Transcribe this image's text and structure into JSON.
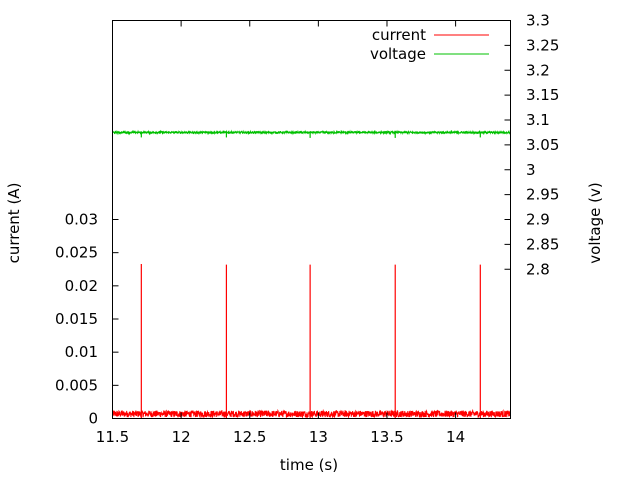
{
  "chart_data": {
    "type": "line",
    "title": "",
    "xlabel": "time (s)",
    "ylabel": "current (A)",
    "y2label": "voltage (v)",
    "xlim": [
      11.5,
      14.4
    ],
    "ylim": [
      0,
      0.06
    ],
    "y2lim": [
      2.5,
      3.3
    ],
    "xticks": [
      11.5,
      12,
      12.5,
      13,
      13.5,
      14
    ],
    "xtick_labels": [
      "11.5",
      "12",
      "12.5",
      "13",
      "13.5",
      "14"
    ],
    "yticks": [
      0,
      0.005,
      0.01,
      0.015,
      0.02,
      0.025,
      0.03
    ],
    "ytick_labels": [
      "0",
      "0.005",
      "0.01",
      "0.015",
      "0.02",
      "0.025",
      "0.03"
    ],
    "y2ticks": [
      2.8,
      2.85,
      2.9,
      2.95,
      3,
      3.05,
      3.1,
      3.15,
      3.2,
      3.25,
      3.3
    ],
    "y2tick_labels": [
      "2.8",
      "2.85",
      "2.9",
      "2.95",
      "3",
      "3.05",
      "3.1",
      "3.15",
      "3.2",
      "3.25",
      "3.3"
    ],
    "grid": false,
    "legend_position": "top-right",
    "series": [
      {
        "name": "current",
        "axis": "left",
        "color": "#ff0000",
        "baseline": 0.0007,
        "noise": 0.0005,
        "spikes": [
          {
            "x": 11.71,
            "y": 0.0233
          },
          {
            "x": 12.33,
            "y": 0.0232
          },
          {
            "x": 12.94,
            "y": 0.0232
          },
          {
            "x": 13.56,
            "y": 0.0232
          },
          {
            "x": 14.18,
            "y": 0.0232
          }
        ]
      },
      {
        "name": "voltage",
        "axis": "right",
        "color": "#00c000",
        "baseline": 3.075,
        "noise": 0.002,
        "dips": [
          {
            "x": 11.71,
            "y": 3.065
          },
          {
            "x": 12.33,
            "y": 3.065
          },
          {
            "x": 12.94,
            "y": 3.064
          },
          {
            "x": 13.56,
            "y": 3.064
          },
          {
            "x": 14.18,
            "y": 3.065
          }
        ]
      }
    ]
  }
}
